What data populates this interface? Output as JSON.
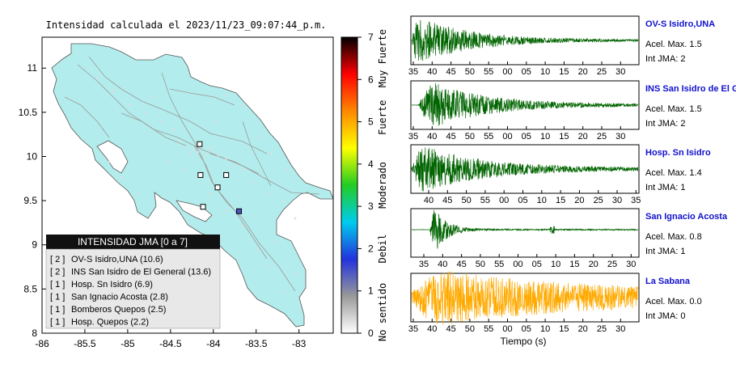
{
  "map": {
    "title": "Intensidad calculada el 2023/11/23_09:07:44_p.m.",
    "xlim": [
      -86,
      -82.6
    ],
    "ylim": [
      8,
      11.35
    ],
    "x_ticks": [
      {
        "value": -86,
        "label": "-86"
      },
      {
        "value": -85.5,
        "label": "-85.5"
      },
      {
        "value": -85,
        "label": "-85"
      },
      {
        "value": -84.5,
        "label": "-84.5"
      },
      {
        "value": -84,
        "label": "-84"
      },
      {
        "value": -83.5,
        "label": "-83.5"
      },
      {
        "value": -83,
        "label": "-83"
      }
    ],
    "y_ticks": [
      {
        "value": 8,
        "label": "8"
      },
      {
        "value": 8.5,
        "label": "8.5"
      },
      {
        "value": 9,
        "label": "9"
      },
      {
        "value": 9.5,
        "label": "9.5"
      },
      {
        "value": 10,
        "label": "10"
      },
      {
        "value": 10.5,
        "label": "10.5"
      },
      {
        "value": 11,
        "label": "11"
      }
    ],
    "land_color": "#b3ecec",
    "stations": [
      {
        "lon": -84.16,
        "lat": 10.14,
        "color": "#ffffff"
      },
      {
        "lon": -84.15,
        "lat": 9.79,
        "color": "#ffffff"
      },
      {
        "lon": -83.85,
        "lat": 9.79,
        "color": "#ffffff"
      },
      {
        "lon": -83.95,
        "lat": 9.65,
        "color": "#ffffff"
      },
      {
        "lon": -84.12,
        "lat": 9.43,
        "color": "#ffffff"
      },
      {
        "lon": -83.7,
        "lat": 9.38,
        "color": "#4b55cc"
      }
    ]
  },
  "legend": {
    "title": "INTENSIDAD JMA [0 a 7]",
    "items": [
      {
        "level": "[ 2 ]",
        "text": "OV-S Isidro,UNA (10.6)"
      },
      {
        "level": "[ 2 ]",
        "text": "INS San Isidro de El General (13.6)"
      },
      {
        "level": "[ 1 ]",
        "text": "Hosp. Sn Isidro (6.9)"
      },
      {
        "level": "[ 1 ]",
        "text": "San Ignacio Acosta (2.8)"
      },
      {
        "level": "[ 1 ]",
        "text": "Bomberos Quepos (2.5)"
      },
      {
        "level": "[ 1 ]",
        "text": "Hosp. Quepos (2.2)"
      }
    ]
  },
  "colorbar": {
    "ticks": [
      "0",
      "1",
      "2",
      "3",
      "4",
      "5",
      "6",
      "7"
    ],
    "labels": [
      {
        "text": "No sentido",
        "value": 0.5
      },
      {
        "text": "Debil",
        "value": 2
      },
      {
        "text": "Moderado",
        "value": 3.5
      },
      {
        "text": "Fuerte",
        "value": 5.1
      },
      {
        "text": "Muy Fuerte",
        "value": 6.5
      }
    ],
    "stops": [
      "#ffffff",
      "#999999",
      "#2233dd",
      "#00ccee",
      "#22cc22",
      "#ffff00",
      "#ff8800",
      "#ff0000",
      "#000000"
    ]
  },
  "chart_data": {
    "type": "line",
    "xlabel": "Tiempo (s)",
    "series": [
      {
        "name": "OV-S Isidro,UNA",
        "acel_label": "Acel. Max. 1.5",
        "int_label": "Int JMA: 2",
        "color": "#006400",
        "ticks": [
          "35",
          "40",
          "45",
          "50",
          "55",
          "00",
          "05",
          "10",
          "15",
          "20",
          "25",
          "30"
        ],
        "first_tick": 35,
        "wave_start": 0.0,
        "peak_offset": 0.02,
        "decay": 4.0,
        "noise": 0.03
      },
      {
        "name": "INS San Isidro de El Ge",
        "acel_label": "Acel. Max. 1.5",
        "int_label": "Int JMA: 2",
        "color": "#006400",
        "ticks": [
          "35",
          "40",
          "45",
          "50",
          "55",
          "00",
          "05",
          "10",
          "15",
          "20",
          "25",
          "30"
        ],
        "first_tick": 35,
        "wave_start": 0.03,
        "peak_offset": 0.05,
        "decay": 4.0,
        "noise": 0.04
      },
      {
        "name": "Hosp. Sn Isidro",
        "acel_label": "Acel. Max. 1.4",
        "int_label": "Int JMA: 1",
        "color": "#006400",
        "ticks": [
          "40",
          "45",
          "50",
          "55",
          "00",
          "05",
          "10",
          "15",
          "20",
          "25",
          "30",
          "35"
        ],
        "first_tick": 36.5,
        "wave_start": 0.0,
        "peak_offset": 0.04,
        "decay": 3.5,
        "noise": 0.05
      },
      {
        "name": "San Ignacio Acosta",
        "acel_label": "Acel. Max. 0.8",
        "int_label": "Int JMA: 1",
        "color": "#006400",
        "ticks": [
          "35",
          "40",
          "45",
          "50",
          "55",
          "00",
          "05",
          "10",
          "15",
          "20",
          "25",
          "30"
        ],
        "first_tick": 33.5,
        "wave_start": 0.08,
        "peak_offset": 0.02,
        "decay": 18.0,
        "noise": 0.03
      },
      {
        "name": "La Sabana",
        "acel_label": "Acel. Max. 0.0",
        "int_label": "Int JMA: 0",
        "color": "#ffaa00",
        "ticks": [
          "35",
          "40",
          "45",
          "50",
          "55",
          "00",
          "05",
          "10",
          "15",
          "20",
          "25",
          "30"
        ],
        "first_tick": 35,
        "wave_start": 0.0,
        "peak_offset": 0.1,
        "decay": 1.6,
        "noise": 0.25
      }
    ]
  }
}
